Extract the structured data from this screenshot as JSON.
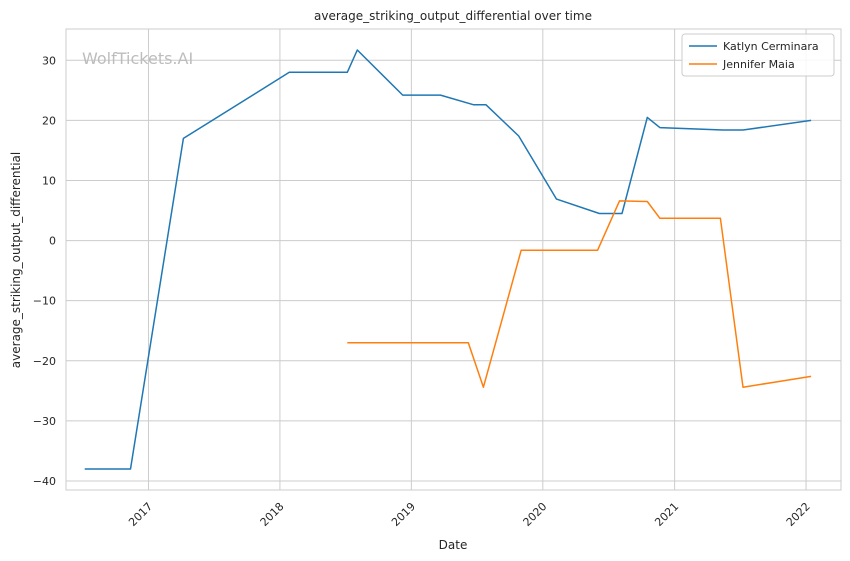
{
  "chart_data": {
    "type": "line",
    "title": "average_striking_output_differential over time",
    "xlabel": "Date",
    "ylabel": "average_striking_output_differential",
    "watermark": "WolfTickets.AI",
    "x_ticks": [
      "2017",
      "2018",
      "2019",
      "2020",
      "2021",
      "2022"
    ],
    "y_ticks": [
      30,
      20,
      10,
      0,
      -10,
      -20,
      -30,
      -40
    ],
    "xlim": [
      "2016-05-17",
      "2022-04-08"
    ],
    "ylim": [
      -41.5,
      35.2
    ],
    "grid": true,
    "legend_position": "top-right",
    "colors": {
      "Katlyn Cerminara": "#1f77b4",
      "Jennifer Maia": "#ff7f0e"
    },
    "series": [
      {
        "name": "Katlyn Cerminara",
        "x": [
          "2016-07-08",
          "2016-11-12",
          "2017-04-08",
          "2018-01-27",
          "2018-07-07",
          "2018-08-04",
          "2018-12-08",
          "2019-03-23",
          "2019-06-22",
          "2019-07-27",
          "2019-10-26",
          "2020-02-08",
          "2020-06-06",
          "2020-08-08",
          "2020-10-17",
          "2020-11-21",
          "2021-05-15",
          "2021-07-10",
          "2022-01-15"
        ],
        "y": [
          -38,
          -38,
          17,
          28,
          28,
          31.7,
          24.2,
          24.2,
          22.6,
          22.6,
          17.4,
          6.9,
          4.5,
          4.5,
          20.5,
          18.8,
          18.4,
          18.4,
          20
        ]
      },
      {
        "name": "Jennifer Maia",
        "x": [
          "2018-07-07",
          "2019-06-08",
          "2019-07-20",
          "2019-11-02",
          "2020-06-01",
          "2020-08-01",
          "2020-10-17",
          "2020-11-21",
          "2021-05-08",
          "2021-07-10",
          "2022-01-15"
        ],
        "y": [
          -17,
          -17,
          -24.4,
          -1.6,
          -1.6,
          6.6,
          6.5,
          3.7,
          3.7,
          -24.4,
          -22.6
        ]
      }
    ]
  }
}
